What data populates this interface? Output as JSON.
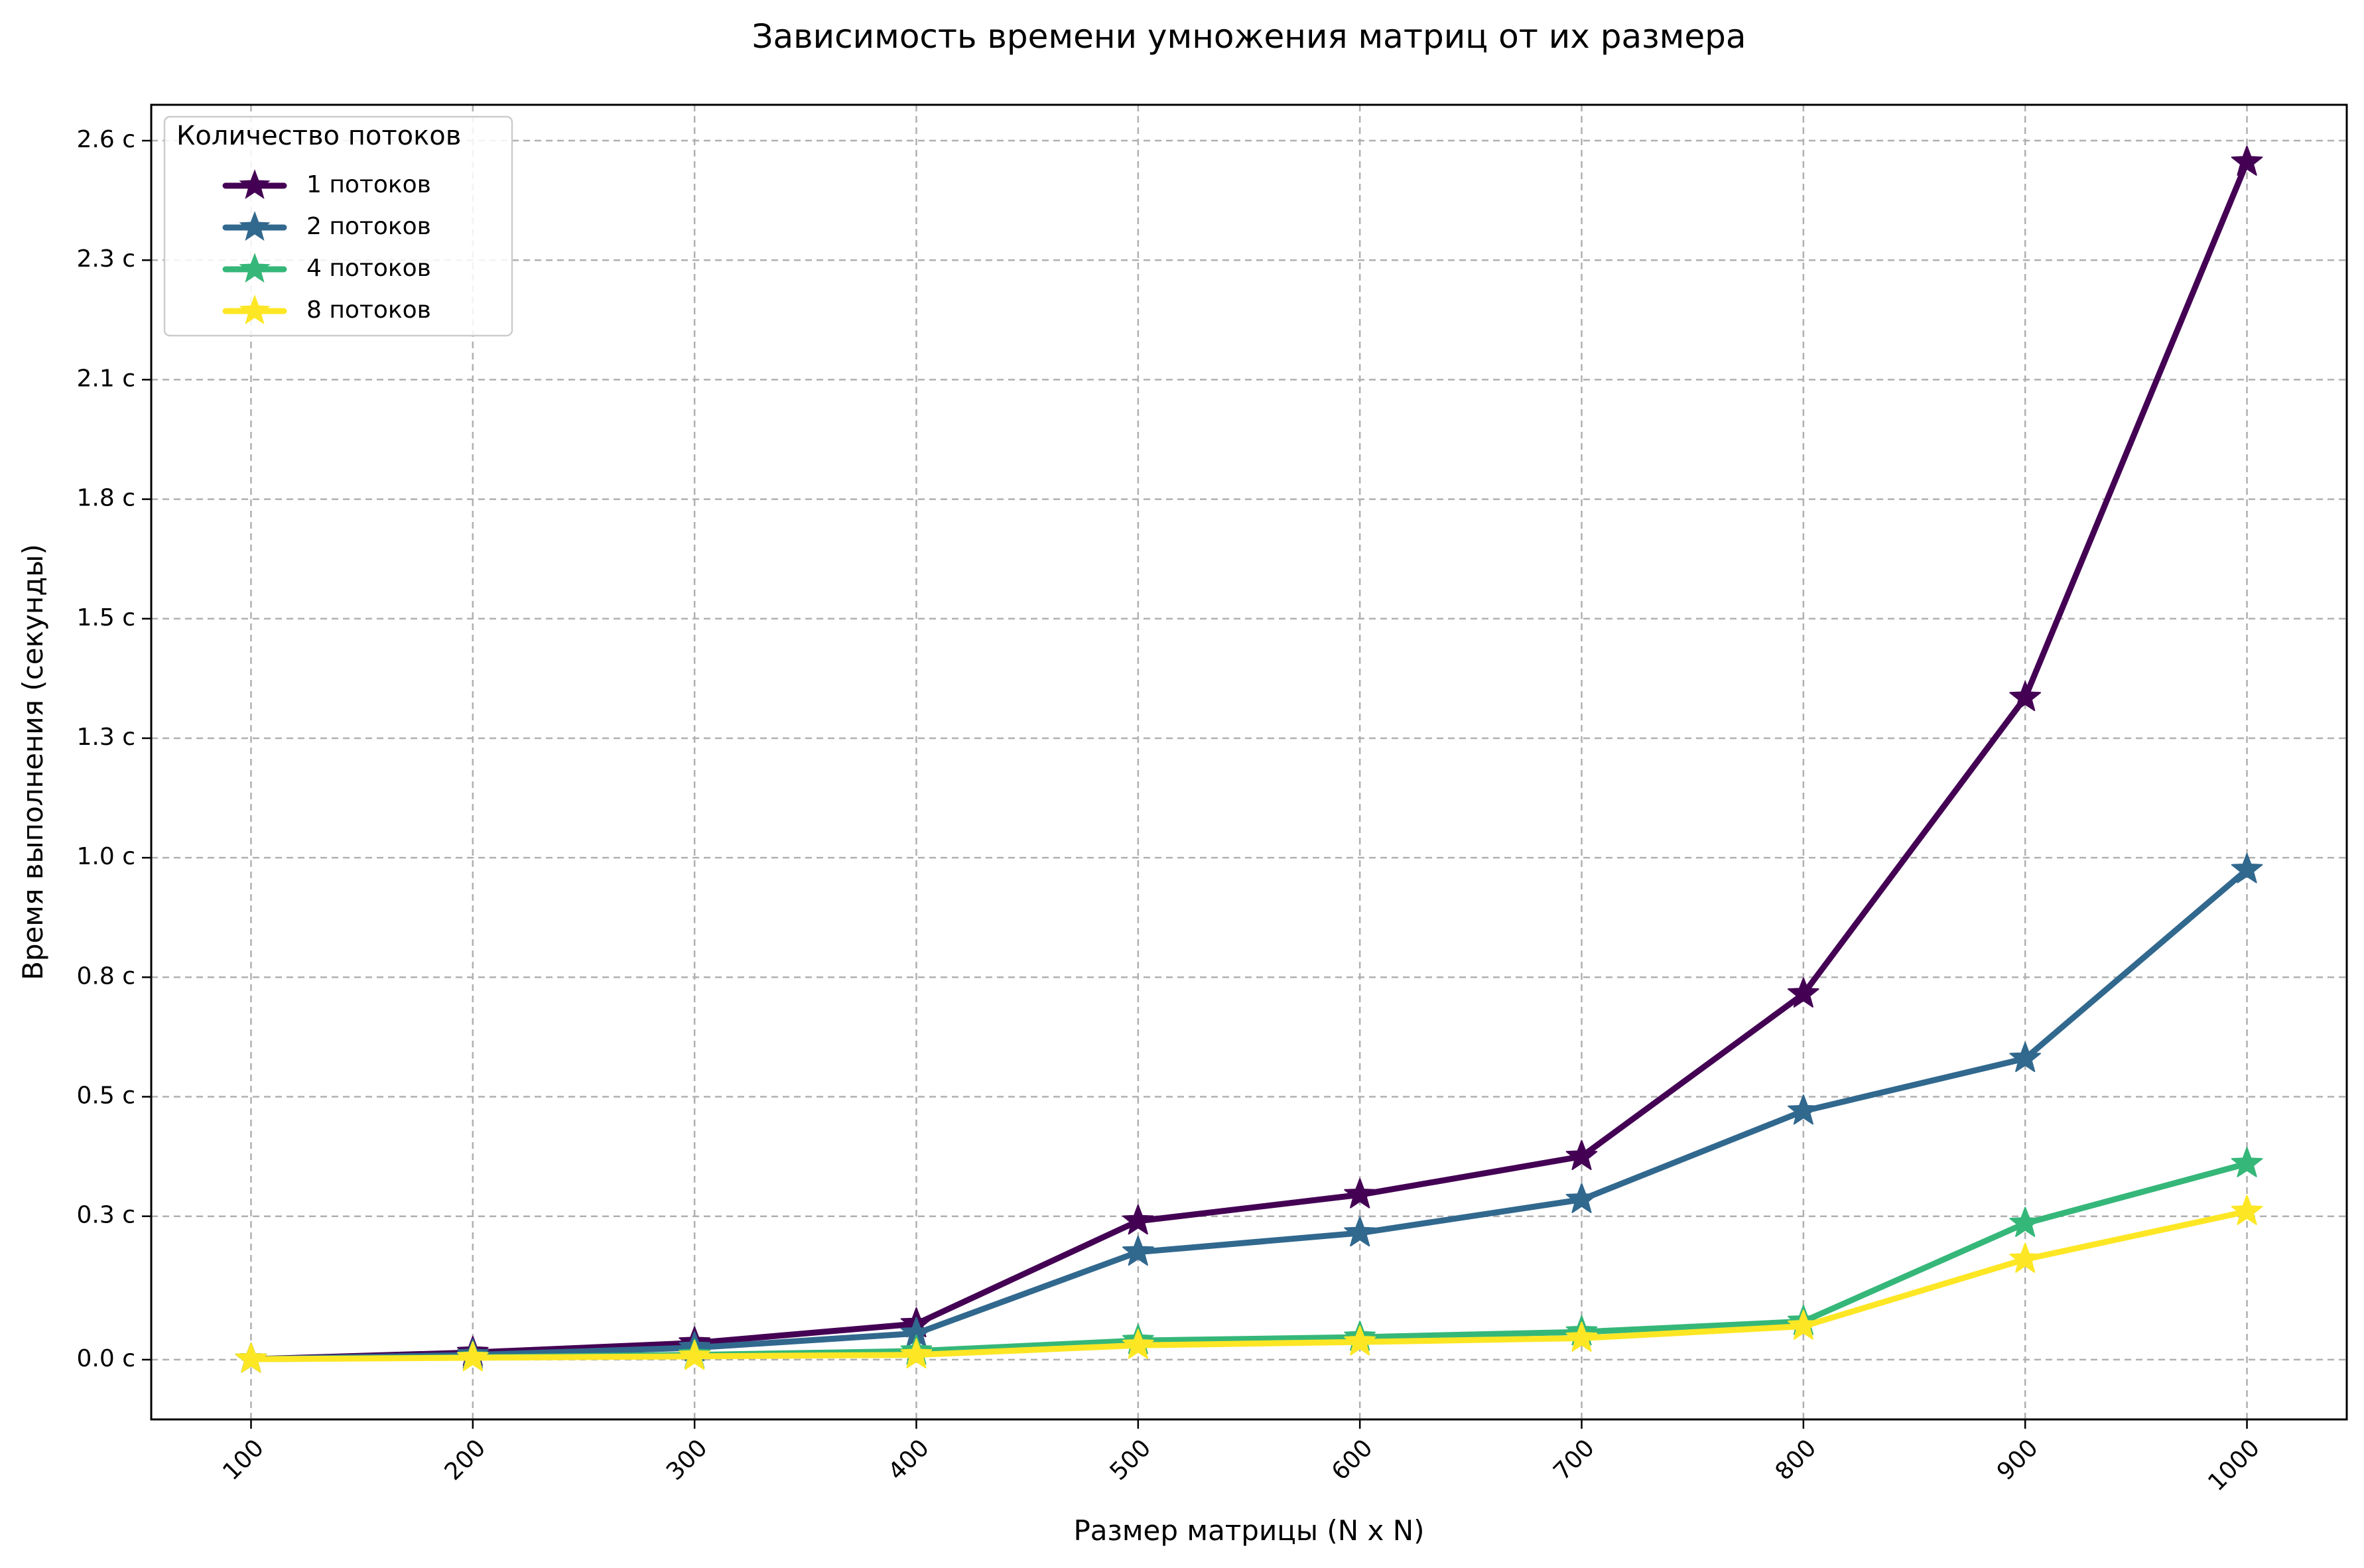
{
  "chart_data": {
    "type": "line",
    "title": "Зависимость времени умножения матриц от их размера",
    "xlabel": "Размер матрицы (N x N)",
    "ylabel": "Время выполнения (секунды)",
    "x": [
      100,
      200,
      300,
      400,
      500,
      600,
      700,
      800,
      900,
      1000
    ],
    "x_tick_labels": [
      "100",
      "200",
      "300",
      "400",
      "500",
      "600",
      "700",
      "800",
      "900",
      "1000"
    ],
    "x_tick_rotation_deg": 45,
    "xlim": [
      55,
      1045
    ],
    "y_ticks": [
      0.0,
      0.3,
      0.55,
      0.8,
      1.05,
      1.3,
      1.55,
      1.8,
      2.05,
      2.3,
      2.55
    ],
    "y_tick_labels": [
      "0.0 с",
      "0.3 с",
      "0.5 с",
      "0.8 с",
      "1.0 с",
      "1.3 с",
      "1.5 с",
      "1.8 с",
      "2.1 с",
      "2.3 с",
      "2.6 с"
    ],
    "ylim": [
      -0.125,
      2.625
    ],
    "grid": true,
    "legend": {
      "title": "Количество потоков",
      "placement": "upper-left"
    },
    "series": [
      {
        "name": "1 потоков",
        "color": "#440154",
        "marker": "star",
        "values": [
          0.001,
          0.015,
          0.035,
          0.075,
          0.29,
          0.345,
          0.425,
          0.765,
          1.385,
          2.505
        ]
      },
      {
        "name": "2 потоков",
        "color": "#31688e",
        "marker": "star",
        "values": [
          0.001,
          0.01,
          0.025,
          0.055,
          0.225,
          0.265,
          0.335,
          0.52,
          0.63,
          1.025
        ]
      },
      {
        "name": "4 потоков",
        "color": "#35b779",
        "marker": "star",
        "values": [
          0.001,
          0.005,
          0.01,
          0.018,
          0.04,
          0.047,
          0.058,
          0.08,
          0.285,
          0.41
        ]
      },
      {
        "name": "8 потоков",
        "color": "#fde725",
        "marker": "star",
        "values": [
          0.001,
          0.004,
          0.007,
          0.01,
          0.03,
          0.037,
          0.045,
          0.07,
          0.21,
          0.31
        ]
      }
    ]
  }
}
